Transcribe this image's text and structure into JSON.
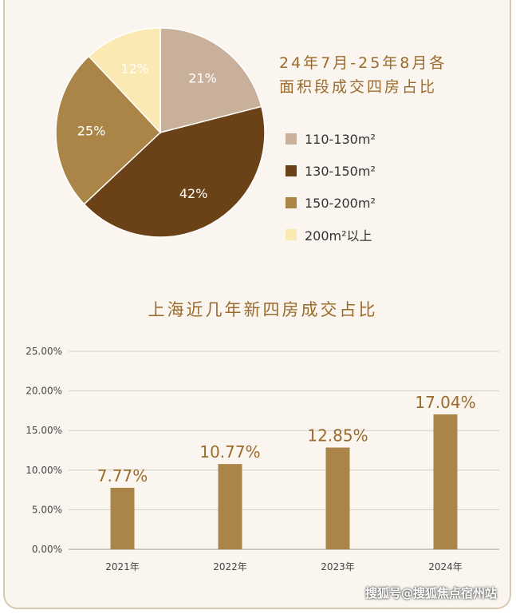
{
  "pie_title": "24年7月-25年8月各面积段成交四房占比",
  "bar_title": "上海近几年新四房成交占比",
  "watermark": "搜狐号@搜狐焦点宿州站",
  "colors": {
    "background": "#faf6ef",
    "title": "#9a6b2c",
    "bar": "#ab8548",
    "grid": "#cfcfcf"
  },
  "chart_data": [
    {
      "type": "pie",
      "title": "24年7月-25年8月各面积段成交四房占比",
      "slices": [
        {
          "label": "110-130m²",
          "value": 21,
          "display": "21%",
          "color": "#c8b09b"
        },
        {
          "label": "130-150m²",
          "value": 42,
          "display": "42%",
          "color": "#6b4117"
        },
        {
          "label": "150-200m²",
          "value": 25,
          "display": "25%",
          "color": "#ab8548"
        },
        {
          "label": "200m²以上",
          "value": 12,
          "display": "12%",
          "color": "#fbe9b3"
        }
      ],
      "legend_position": "right"
    },
    {
      "type": "bar",
      "title": "上海近几年新四房成交占比",
      "categories": [
        "2021年",
        "2022年",
        "2023年",
        "2024年"
      ],
      "values": [
        7.77,
        10.77,
        12.85,
        17.04
      ],
      "labels": [
        "7.77%",
        "10.77%",
        "12.85%",
        "17.04%"
      ],
      "yticks": [
        "0.00%",
        "5.00%",
        "10.00%",
        "15.00%",
        "20.00%",
        "25.00%"
      ],
      "ylim": [
        0,
        25
      ],
      "grid": true
    }
  ]
}
